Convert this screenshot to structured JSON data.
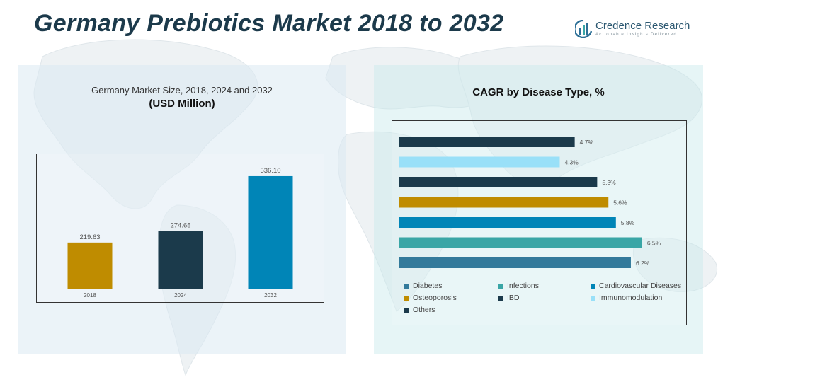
{
  "header": {
    "title_main": "Germany Prebiotics Market",
    "title_years": "2018 to 2032",
    "logo_name": "Credence Research",
    "logo_tagline": "Actionable Insights Delivered"
  },
  "colors": {
    "title": "#1c3a4b",
    "bar_2018": "#bf8c00",
    "bar_2024": "#1b3a4b",
    "bar_2032": "#0085b7"
  },
  "chart_data": [
    {
      "type": "bar",
      "title": "Germany Market Size, 2018, 2024 and 2032",
      "subtitle": "(USD Million)",
      "categories": [
        "2018",
        "2024",
        "2032"
      ],
      "values": [
        219.63,
        274.65,
        536.1
      ],
      "value_labels": [
        "219.63",
        "274.65",
        "536.10"
      ],
      "colors": [
        "#bf8c00",
        "#1b3a4b",
        "#0085b7"
      ],
      "ylim": [
        0,
        600
      ],
      "grid": false
    },
    {
      "type": "bar",
      "orientation": "horizontal",
      "title": "CAGR by Disease Type, %",
      "categories": [
        "Others",
        "Immunomodulation",
        "IBD",
        "Osteoporosis",
        "Cardiovascular Diseases",
        "Infections",
        "Diabetes"
      ],
      "values": [
        4.7,
        4.3,
        5.3,
        5.6,
        5.8,
        6.5,
        6.2
      ],
      "value_labels": [
        "4.7%",
        "4.3%",
        "5.3%",
        "5.6%",
        "5.8%",
        "6.5%",
        "6.2%"
      ],
      "colors": [
        "#1b3a4b",
        "#99e0f8",
        "#1b3a4b",
        "#bf8c00",
        "#0085b7",
        "#3aa6a6",
        "#337a9b"
      ],
      "xlim": [
        0,
        6.9
      ],
      "grid": false,
      "legend_position": "bottom",
      "legend": [
        {
          "label": "Diabetes",
          "color": "#337a9b"
        },
        {
          "label": "Infections",
          "color": "#3aa6a6"
        },
        {
          "label": "Cardiovascular Diseases",
          "color": "#0085b7"
        },
        {
          "label": "Osteoporosis",
          "color": "#bf8c00"
        },
        {
          "label": "IBD",
          "color": "#1b3a4b"
        },
        {
          "label": "Immunomodulation",
          "color": "#99e0f8"
        },
        {
          "label": "Others",
          "color": "#1b3a4b"
        }
      ]
    }
  ]
}
